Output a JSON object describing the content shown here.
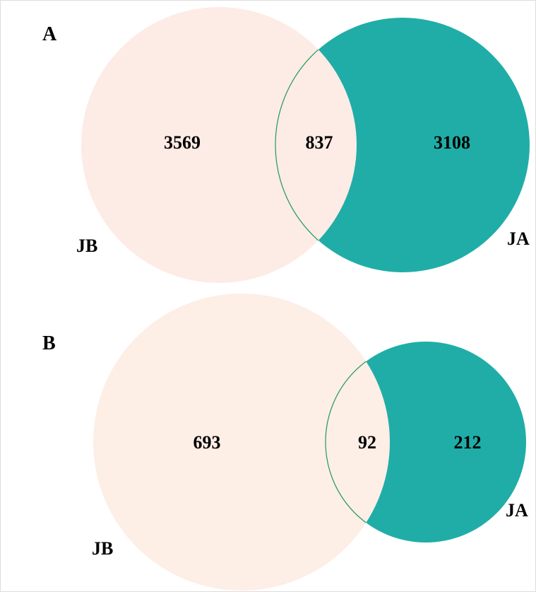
{
  "colors": {
    "jb_fill_a": "#fdebe6",
    "jb_fill_b": "#fdeee6",
    "ja_fill": "#20ada7",
    "overlap_stroke": "#1e9a5a",
    "frame": "#dddddd"
  },
  "panels": [
    {
      "letter": "A",
      "sets": {
        "left": "JB",
        "right": "JA"
      },
      "counts": {
        "jb_only": "3569",
        "both": "837",
        "ja_only": "3108"
      }
    },
    {
      "letter": "B",
      "sets": {
        "left": "JB",
        "right": "JA"
      },
      "counts": {
        "jb_only": "693",
        "both": "92",
        "ja_only": "212"
      }
    }
  ]
}
